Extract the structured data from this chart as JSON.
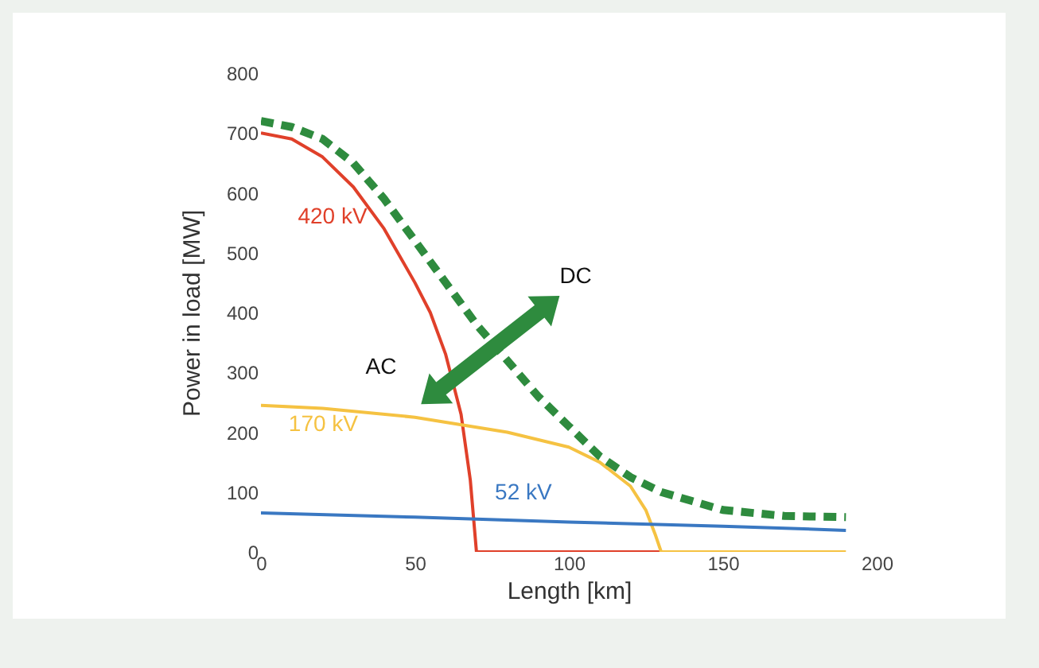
{
  "chart_data": {
    "type": "line",
    "xlabel": "Length [km]",
    "ylabel": "Power in load [MW]",
    "xlim": [
      0,
      200
    ],
    "xticks": [
      0,
      50,
      100,
      150,
      200
    ],
    "ylim": [
      0,
      800
    ],
    "yticks": [
      0,
      100,
      200,
      300,
      400,
      500,
      600,
      700,
      800
    ],
    "grid": false,
    "legend": false,
    "marker": "none",
    "series": [
      {
        "name": "420 kV",
        "color": "#e0402a",
        "x": [
          0,
          10,
          20,
          30,
          40,
          50,
          55,
          60,
          65,
          68,
          70,
          100,
          130
        ],
        "values": [
          700,
          690,
          660,
          610,
          540,
          450,
          400,
          330,
          230,
          120,
          0,
          0,
          0
        ]
      },
      {
        "name": "170 kV",
        "color": "#f5c242",
        "x": [
          0,
          20,
          50,
          80,
          100,
          110,
          120,
          125,
          128,
          130,
          160,
          190
        ],
        "values": [
          245,
          240,
          225,
          200,
          175,
          150,
          110,
          70,
          30,
          0,
          0,
          0
        ]
      },
      {
        "name": "52 kV",
        "color": "#3a78c2",
        "x": [
          0,
          50,
          100,
          150,
          190
        ],
        "values": [
          65,
          58,
          50,
          43,
          36
        ]
      },
      {
        "color": "#2e8b3e",
        "line_style": "dashed",
        "x": [
          0,
          10,
          20,
          30,
          40,
          50,
          60,
          70,
          80,
          90,
          100,
          110,
          120,
          130,
          140,
          150,
          170,
          190
        ],
        "values": [
          720,
          710,
          690,
          650,
          590,
          520,
          450,
          380,
          320,
          260,
          210,
          160,
          125,
          100,
          85,
          70,
          60,
          58
        ]
      }
    ],
    "annotations": [
      "AC",
      "DC"
    ]
  }
}
